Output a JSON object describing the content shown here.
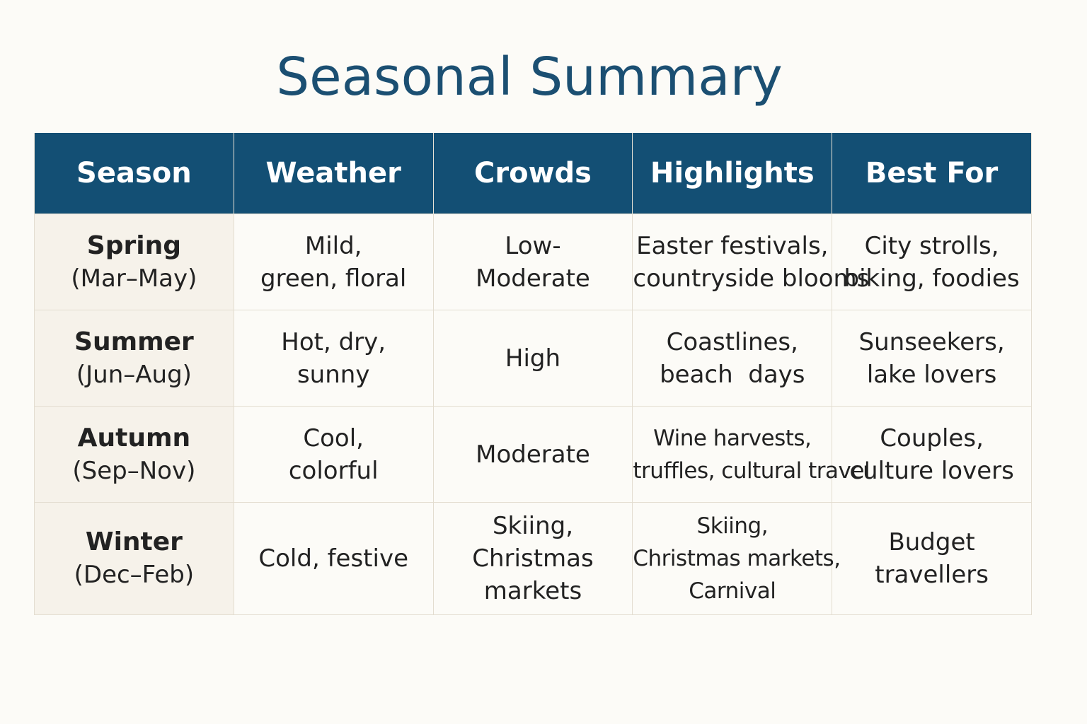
{
  "title": "Seasonal Summary",
  "colors": {
    "header_bg": "#134f74",
    "title": "#1b4f72",
    "season_col_bg": "#f6f2ea",
    "page_bg": "#fcfbf7"
  },
  "columns": [
    "Season",
    "Weather",
    "Crowds",
    "Highlights",
    "Best For"
  ],
  "rows": [
    {
      "season": "Spring",
      "months": "(Mar–May)",
      "weather": [
        "Mild,",
        "green, floral"
      ],
      "crowds": [
        "Low-",
        "Moderate"
      ],
      "highlights": [
        "Easter festivals,",
        "countryside blooms"
      ],
      "best_for": [
        "City strolls,",
        "biking, foodies"
      ]
    },
    {
      "season": "Summer",
      "months": "(Jun–Aug)",
      "weather": [
        "Hot, dry,",
        "sunny"
      ],
      "crowds": [
        "High"
      ],
      "highlights": [
        "Coastlines,",
        "beach  days"
      ],
      "best_for": [
        "Sunseekers,",
        "lake lovers"
      ]
    },
    {
      "season": "Autumn",
      "months": "(Sep–Nov)",
      "weather": [
        "Cool,",
        "colorful"
      ],
      "crowds": [
        "Moderate"
      ],
      "highlights": [
        "Wine harvests,",
        "truffles, cultural travel"
      ],
      "best_for": [
        "Couples,",
        "culture lovers"
      ]
    },
    {
      "season": "Winter",
      "months": "(Dec–Feb)",
      "weather": [
        "Cold, festive"
      ],
      "crowds": [
        "Skiing,",
        "Christmas",
        "markets"
      ],
      "highlights": [
        "Skiing,",
        "Christmas markets,",
        "Carnival"
      ],
      "best_for": [
        "Budget",
        "travellers"
      ]
    }
  ]
}
